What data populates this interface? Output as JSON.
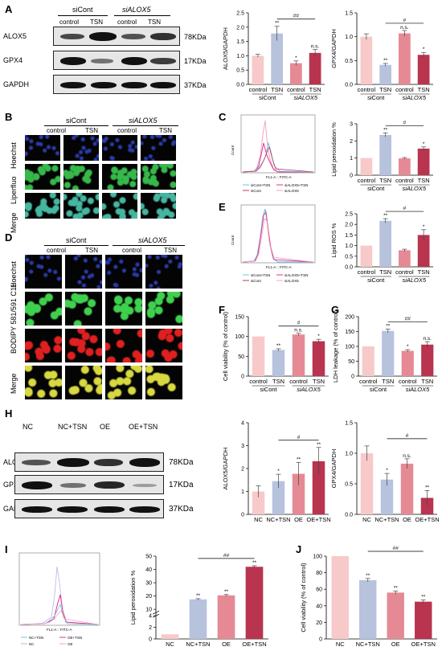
{
  "panels": {
    "A": {
      "label": "A",
      "groups": [
        "siCont",
        "siALOX5"
      ],
      "lanes": [
        "control",
        "TSN",
        "control",
        "TSN"
      ],
      "proteins": [
        "ALOX5",
        "GPX4",
        "GAPDH"
      ],
      "sizes": [
        "78KDa",
        "17KDa",
        "37KDa"
      ]
    },
    "B": {
      "label": "B",
      "groups": [
        "siCont",
        "siALOX5"
      ],
      "lanes": [
        "control",
        "TSN",
        "control",
        "TSN"
      ],
      "rows": [
        "Hoechst",
        "Liperfluo",
        "Merge"
      ]
    },
    "C": {
      "label": "C",
      "flow_xlabel": "FL1-A :: FITC-A",
      "flow_ylabel": "Count",
      "legend": [
        "siCont+TSN",
        "siALOX5+TSN",
        "siCont",
        "siALOX5"
      ]
    },
    "D": {
      "label": "D",
      "groups": [
        "siCont",
        "siALOX5"
      ],
      "lanes": [
        "control",
        "TSN",
        "control",
        "TSN"
      ],
      "rows": [
        "Hoechst",
        "BODIPY 581/591 C11",
        "Merge"
      ]
    },
    "E": {
      "label": "E",
      "flow_xlabel": "FL1-A :: FITC-A",
      "flow_ylabel": "Count",
      "legend": [
        "siCont+TSN",
        "siALOX5+TSN",
        "siCont",
        "siALOX5"
      ]
    },
    "F": {
      "label": "F"
    },
    "G": {
      "label": "G"
    },
    "H": {
      "label": "H",
      "lanes": [
        "NC",
        "NC+TSN",
        "OE",
        "OE+TSN"
      ],
      "proteins": [
        "ALOX5",
        "GPX4",
        "GAPDH"
      ],
      "sizes": [
        "78KDa",
        "17KDa",
        "37KDa"
      ]
    },
    "I": {
      "label": "I",
      "flow_xlabel": "FL1-A :: FITC-A",
      "legend": [
        "NC+TSN",
        "OE+TSN",
        "NC",
        "OE"
      ]
    },
    "J": {
      "label": "J"
    }
  },
  "colors": {
    "pink_light": "#f8c9c9",
    "blue_light": "#b7c2dd",
    "red_mid": "#e58a94",
    "red_dark": "#b8344f",
    "flow_blue": "#6fc4e6",
    "flow_magenta": "#e0338f",
    "flow_pink": "#f4a5c0",
    "flow_red": "#c43a5a"
  },
  "chart_data": [
    {
      "id": "A-alox5",
      "type": "bar",
      "ylabel": "ALOX5/GAPDH",
      "ylim": [
        0,
        2.5
      ],
      "yticks": [
        "0.0",
        "0.5",
        "1.0",
        "1.5",
        "2.0",
        "2.5"
      ],
      "categories": [
        "control",
        "TSN",
        "control",
        "TSN"
      ],
      "values": [
        1.0,
        1.78,
        0.74,
        1.1
      ],
      "errors": [
        0.05,
        0.25,
        0.08,
        0.12
      ],
      "sig": [
        "",
        "**",
        "*",
        "n.s."
      ],
      "groups": [
        "siCont",
        "siALOX5"
      ],
      "bracket": "##"
    },
    {
      "id": "A-gpx4",
      "type": "bar",
      "ylabel": "GPX4/GAPDH",
      "ylim": [
        0,
        1.5
      ],
      "yticks": [
        "0.0",
        "0.5",
        "1.0",
        "1.5"
      ],
      "categories": [
        "control",
        "TSN",
        "control",
        "TSN"
      ],
      "values": [
        1.0,
        0.41,
        1.07,
        0.62
      ],
      "errors": [
        0.06,
        0.03,
        0.06,
        0.05
      ],
      "sig": [
        "",
        "**",
        "n.s.",
        "*"
      ],
      "groups": [
        "siCont",
        "siALOX5"
      ],
      "bracket": "#"
    },
    {
      "id": "C-lipid",
      "type": "bar",
      "ylabel": "Lipid peroxidation %",
      "ylim": [
        0,
        3
      ],
      "yticks": [
        "0",
        "1",
        "2",
        "3"
      ],
      "categories": [
        "control",
        "TSN",
        "control",
        "TSN"
      ],
      "values": [
        1.0,
        2.35,
        0.98,
        1.55
      ],
      "errors": [
        0,
        0.12,
        0.05,
        0.1
      ],
      "sig": [
        "",
        "**",
        "",
        "*"
      ],
      "groups": [
        "siCont",
        "siALOX5"
      ],
      "bracket": "#"
    },
    {
      "id": "E-ros",
      "type": "bar",
      "ylabel": "Lipid ROS %",
      "ylim": [
        0,
        2.5
      ],
      "yticks": [
        "0.0",
        "0.5",
        "1.0",
        "1.5",
        "2.0",
        "2.5"
      ],
      "categories": [
        "control",
        "TSN",
        "control",
        "TSN"
      ],
      "values": [
        1.0,
        2.17,
        0.78,
        1.5
      ],
      "errors": [
        0,
        0.1,
        0.05,
        0.25
      ],
      "sig": [
        "",
        "**",
        "",
        "*"
      ],
      "groups": [
        "siCont",
        "siALOX5"
      ],
      "bracket": "#"
    },
    {
      "id": "F-viab",
      "type": "bar",
      "ylabel": "Cell viability (% of control)",
      "ylim": [
        0,
        150
      ],
      "yticks": [
        "0",
        "50",
        "100",
        "150"
      ],
      "categories": [
        "control",
        "TSN",
        "control",
        "TSN"
      ],
      "values": [
        100,
        66,
        105,
        88
      ],
      "errors": [
        0,
        3,
        3,
        5
      ],
      "sig": [
        "",
        "**",
        "n.s.",
        "*"
      ],
      "groups": [
        "siCont",
        "siALOX5"
      ],
      "bracket": "#"
    },
    {
      "id": "G-ldh",
      "type": "bar",
      "ylabel": "LDH leakage (% of control)",
      "ylim": [
        0,
        200
      ],
      "yticks": [
        "0",
        "50",
        "100",
        "150",
        "200"
      ],
      "categories": [
        "control",
        "TSN",
        "control",
        "TSN"
      ],
      "values": [
        100,
        152,
        85,
        106
      ],
      "errors": [
        0,
        6,
        4,
        10
      ],
      "sig": [
        "",
        "**",
        "*",
        "n.s."
      ],
      "groups": [
        "siCont",
        "siALOX5"
      ],
      "bracket": "##"
    },
    {
      "id": "H-alox5",
      "type": "bar",
      "ylabel": "ALOX5/GAPDH",
      "ylim": [
        0,
        4
      ],
      "yticks": [
        "0",
        "1",
        "2",
        "3",
        "4"
      ],
      "categories": [
        "NC",
        "NC+TSN",
        "OE",
        "OE+TSN"
      ],
      "values": [
        1.0,
        1.45,
        1.77,
        2.32
      ],
      "errors": [
        0.25,
        0.3,
        0.5,
        0.6
      ],
      "sig": [
        "",
        "*",
        "**",
        "**"
      ],
      "bracket": "#"
    },
    {
      "id": "H-gpx4",
      "type": "bar",
      "ylabel": "GPX4/GAPDH",
      "ylim": [
        0,
        1.5
      ],
      "yticks": [
        "0.0",
        "0.5",
        "1.0",
        "1.5"
      ],
      "categories": [
        "NC",
        "NC+TSN",
        "OE",
        "OE+TSN"
      ],
      "values": [
        1.0,
        0.57,
        0.83,
        0.27
      ],
      "errors": [
        0.12,
        0.1,
        0.08,
        0.12
      ],
      "sig": [
        "",
        "*",
        "n.s.",
        "**"
      ],
      "bracket": "#"
    },
    {
      "id": "I-lipid",
      "type": "bar",
      "ylabel": "Lipid peroxidation %",
      "ylim": [
        0,
        50
      ],
      "broken_axis": true,
      "yticks": [
        "0",
        "2",
        "4",
        "10",
        "20",
        "30",
        "40",
        "50"
      ],
      "categories": [
        "NC",
        "NC+TSN",
        "OE",
        "OE+TSN"
      ],
      "values": [
        0.8,
        17.5,
        20.5,
        42
      ],
      "errors": [
        0,
        0.5,
        0.6,
        0.8
      ],
      "sig": [
        "",
        "**",
        "**",
        "**"
      ],
      "bracket": "##"
    },
    {
      "id": "J-viab",
      "type": "bar",
      "ylabel": "Cell viability (% of control)",
      "ylim": [
        0,
        100
      ],
      "yticks": [
        "0",
        "20",
        "40",
        "60",
        "80",
        "100"
      ],
      "categories": [
        "NC",
        "NC+TSN",
        "OE",
        "OE+TSN"
      ],
      "values": [
        100,
        71,
        56,
        45
      ],
      "errors": [
        0,
        2,
        2,
        2
      ],
      "sig": [
        "",
        "**",
        "**",
        "**"
      ],
      "bracket": "##"
    }
  ]
}
